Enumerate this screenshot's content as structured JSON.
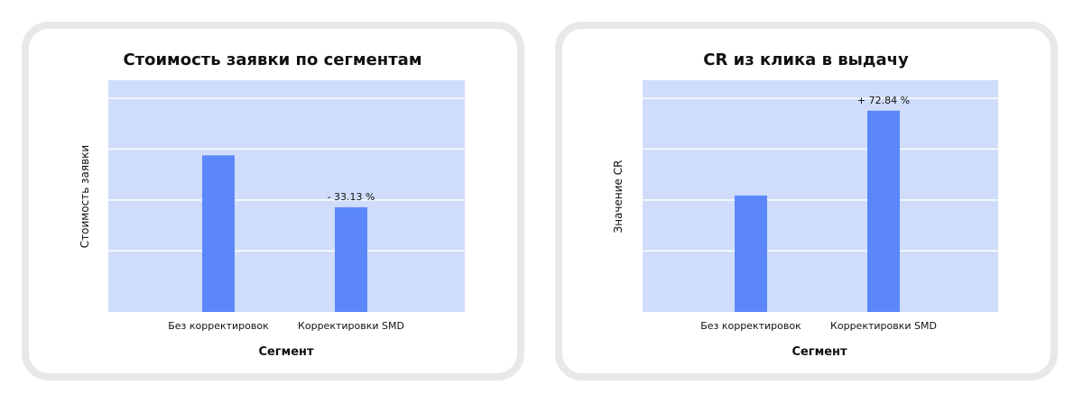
{
  "colors": {
    "plot_bg": "#cfddfa",
    "bar": "#5b87fb",
    "grid": "#ffffff"
  },
  "chart_data": [
    {
      "type": "bar",
      "title": "Стоимость заявки по сегментам",
      "xlabel": "Сегмент",
      "ylabel": "Стоимость заявки",
      "categories": [
        "Без корректировок",
        "Корректировки SMD"
      ],
      "values": [
        100,
        66.87
      ],
      "data_labels": [
        "",
        "- 33.13 %"
      ],
      "ylim": [
        0,
        148
      ],
      "grid": true,
      "gridlines": 4
    },
    {
      "type": "bar",
      "title": "CR из клика в выдачу",
      "xlabel": "Сегмент",
      "ylabel": "Значение CR",
      "categories": [
        "Без корректировок",
        "Корректировки SMD"
      ],
      "values": [
        100,
        172.84
      ],
      "data_labels": [
        "",
        "+ 72.84 %"
      ],
      "ylim": [
        0,
        199
      ],
      "grid": true,
      "gridlines": 4
    }
  ]
}
